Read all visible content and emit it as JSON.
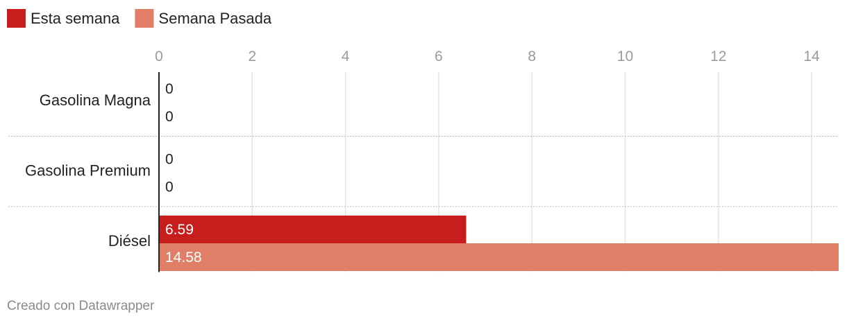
{
  "chart_data": {
    "type": "bar",
    "orientation": "horizontal",
    "categories": [
      "Gasolina Magna",
      "Gasolina Premium",
      "Diésel"
    ],
    "series": [
      {
        "name": "Esta semana",
        "color": "#c71e1d",
        "values": [
          0,
          0,
          6.59
        ],
        "labels": [
          "0",
          "0",
          "6.59"
        ]
      },
      {
        "name": "Semana Pasada",
        "color": "#e17e68",
        "values": [
          0,
          0,
          14.58
        ],
        "labels": [
          "0",
          "0",
          "14.58"
        ]
      }
    ],
    "xlim": [
      0,
      14.58
    ],
    "xticks": [
      0,
      2,
      4,
      6,
      8,
      10,
      12,
      14
    ],
    "xtick_labels": [
      "0",
      "2",
      "4",
      "6",
      "8",
      "10",
      "12",
      "14"
    ],
    "legend_position": "top-left",
    "grid": true
  },
  "footer": {
    "credit": "Creado con Datawrapper"
  }
}
